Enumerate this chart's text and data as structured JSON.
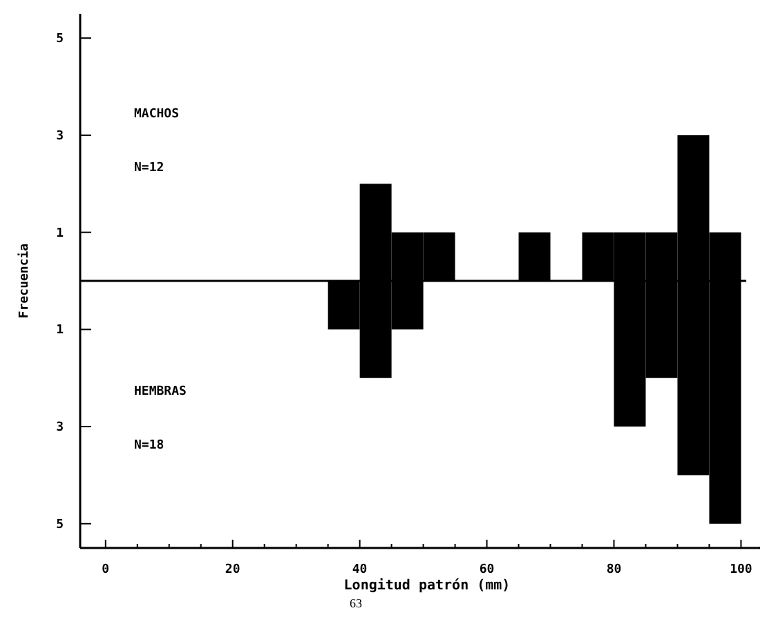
{
  "chart_data": {
    "type": "histogram",
    "xlabel": "Longitud patrón (mm)",
    "ylabel": "Frecuencia",
    "bins": [
      35,
      40,
      45,
      50,
      55,
      60,
      65,
      70,
      75,
      80,
      85,
      90,
      95,
      100
    ],
    "series": [
      {
        "color": "#000000",
        "values": [
          0,
          2,
          1,
          1,
          0,
          0,
          1,
          0,
          1,
          1,
          1,
          3,
          1
        ]
      },
      {
        "color": "#000000",
        "values": [
          -1,
          -2,
          -1,
          0,
          0,
          0,
          0,
          0,
          0,
          -3,
          -2,
          -4,
          -5
        ]
      }
    ],
    "xlim": [
      -4,
      103
    ],
    "xticks": [
      0,
      {
        "value": 5,
        "label": null
      },
      {
        "value": 10,
        "label": null
      },
      {
        "value": 15,
        "label": null
      },
      20,
      {
        "value": 25,
        "label": null
      },
      {
        "value": 30,
        "label": null
      },
      {
        "value": 35,
        "label": null
      },
      40,
      {
        "value": 45,
        "label": null
      },
      {
        "value": 50,
        "label": null
      },
      {
        "value": 55,
        "label": null
      },
      60,
      {
        "value": 65,
        "label": null
      },
      {
        "value": 70,
        "label": null
      },
      {
        "value": 75,
        "label": null
      },
      80,
      {
        "value": 85,
        "label": null
      },
      {
        "value": 90,
        "label": null
      },
      {
        "value": 95,
        "label": null
      },
      100
    ],
    "ylim": [
      -5.5,
      5.5
    ],
    "yticks": [
      {
        "value": -5,
        "label": "5"
      },
      {
        "value": -3,
        "label": "3"
      },
      {
        "value": -1,
        "label": "1"
      },
      1,
      3,
      5
    ],
    "ref_lines": [
      {
        "axis": "y",
        "value": 0,
        "color": "#000000"
      }
    ],
    "annotations": [
      "MACHOS",
      "N=12",
      "HEMBRAS",
      "N=18",
      "63"
    ],
    "grid": false
  }
}
